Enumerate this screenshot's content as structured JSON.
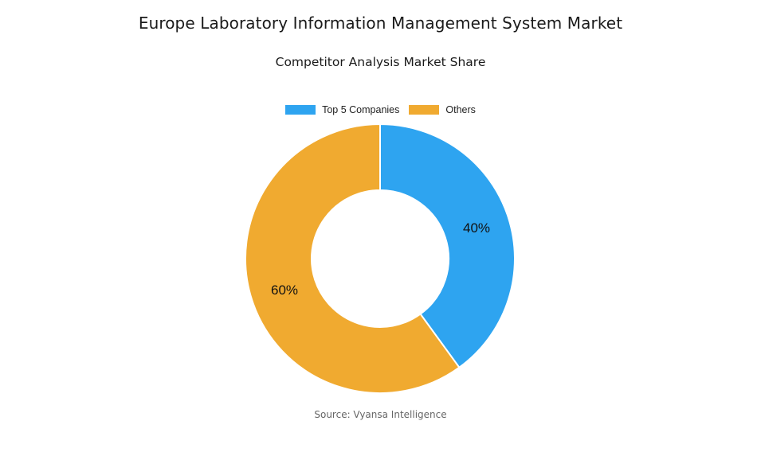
{
  "header": {
    "title": "Europe Laboratory Information Management System Market",
    "subtitle": "Competitor Analysis Market Share"
  },
  "legend": {
    "items": [
      {
        "label": "Top 5 Companies",
        "color": "#2ea4f0"
      },
      {
        "label": "Others",
        "color": "#f0aa30"
      }
    ]
  },
  "slices": [
    {
      "label": "Top 5 Companies",
      "value": 40,
      "display": "40%",
      "color": "#2ea4f0"
    },
    {
      "label": "Others",
      "value": 60,
      "display": "60%",
      "color": "#f0aa30"
    }
  ],
  "footer": {
    "source": "Source: Vyansa Intelligence"
  },
  "chart_data": {
    "type": "pie",
    "variant": "donut",
    "title": "Europe Laboratory Information Management System Market",
    "subtitle": "Competitor Analysis Market Share",
    "categories": [
      "Top 5 Companies",
      "Others"
    ],
    "values": [
      40,
      60
    ],
    "unit": "%",
    "colors": [
      "#2ea4f0",
      "#f0aa30"
    ],
    "data_labels": [
      "40%",
      "60%"
    ],
    "legend_position": "top",
    "start_angle": "12 o'clock, clockwise",
    "source": "Source: Vyansa Intelligence"
  }
}
